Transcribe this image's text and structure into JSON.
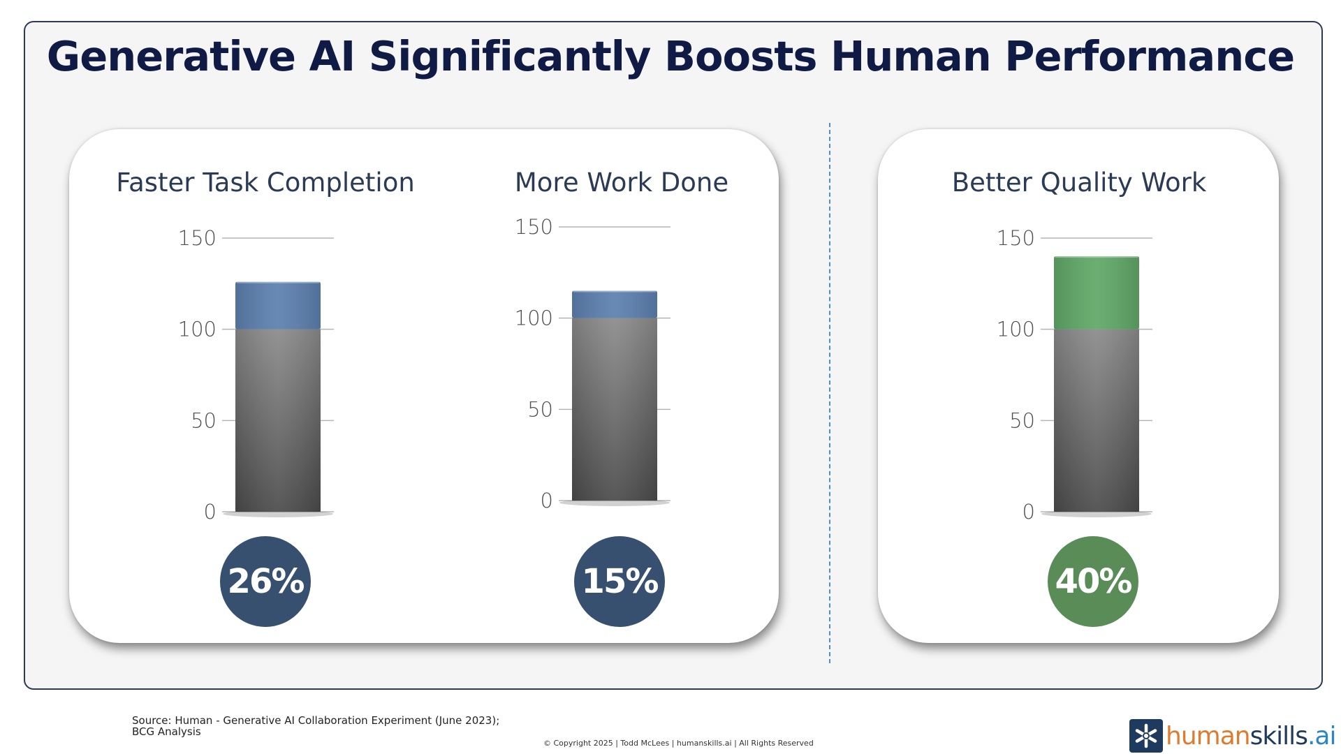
{
  "title": "Generative AI Significantly Boosts Human Performance",
  "chart_data": [
    {
      "type": "bar",
      "title": "Faster Task Completion",
      "categories": [
        ""
      ],
      "series": [
        {
          "values": [
            100
          ],
          "color": "#7a7a7a"
        },
        {
          "values": [
            26
          ],
          "color": "#5b7fae"
        }
      ],
      "stacked": true,
      "ylim": [
        0,
        150
      ],
      "yticks": [
        "0",
        "50",
        "100",
        "150"
      ],
      "badge": "26%",
      "badge_color": "#38506f"
    },
    {
      "type": "bar",
      "title": "More Work Done",
      "categories": [
        ""
      ],
      "series": [
        {
          "values": [
            100
          ],
          "color": "#7a7a7a"
        },
        {
          "values": [
            15
          ],
          "color": "#5b7fae"
        }
      ],
      "stacked": true,
      "ylim": [
        0,
        150
      ],
      "yticks": [
        "0",
        "50",
        "100",
        "150"
      ],
      "badge": "15%",
      "badge_color": "#38506f"
    },
    {
      "type": "bar",
      "title": "Better Quality Work",
      "categories": [
        ""
      ],
      "series": [
        {
          "values": [
            100
          ],
          "color": "#7a7a7a"
        },
        {
          "values": [
            40
          ],
          "color": "#5fa766"
        }
      ],
      "stacked": true,
      "ylim": [
        0,
        150
      ],
      "yticks": [
        "0",
        "50",
        "100",
        "150"
      ],
      "badge": "40%",
      "badge_color": "#5a8c58"
    }
  ],
  "footer": {
    "source_line1": "Source: Human - Generative AI Collaboration Experiment (June 2023);",
    "source_line2": "BCG Analysis",
    "copyright": "© Copyright 2025 | Todd McLees | humanskills.ai | All Rights Reserved"
  },
  "logo": {
    "part1": "human",
    "part2": "skills",
    "part3": ".ai",
    "icon": "asterisk-icon"
  }
}
